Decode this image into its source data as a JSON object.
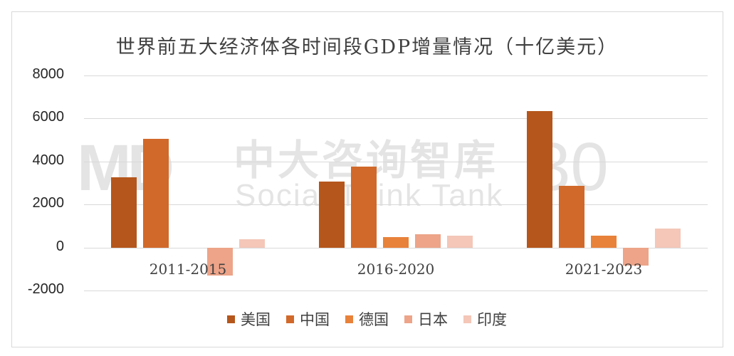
{
  "chart_data": {
    "type": "bar",
    "title": "世界前五大经济体各时间段GDP增量情况（十亿美元）",
    "xlabel": "",
    "ylabel": "",
    "ylim": [
      -2000,
      8000
    ],
    "yticks": [
      8000,
      6000,
      4000,
      2000,
      0,
      -2000
    ],
    "grid": true,
    "legend_position": "bottom",
    "categories": [
      "2011-2015",
      "2016-2020",
      "2021-2023"
    ],
    "series": [
      {
        "name": "美国",
        "color": "#b5561c",
        "values": [
          3250,
          3050,
          6350
        ]
      },
      {
        "name": "中国",
        "color": "#d1692a",
        "values": [
          5050,
          3750,
          2880
        ]
      },
      {
        "name": "德国",
        "color": "#e8823a",
        "values": [
          0,
          500,
          560
        ]
      },
      {
        "name": "日本",
        "color": "#eda489",
        "values": [
          -1300,
          600,
          -850
        ]
      },
      {
        "name": "印度",
        "color": "#f4c7b8",
        "values": [
          400,
          560,
          870
        ]
      }
    ]
  },
  "watermark": {
    "logo": "MD",
    "name_cn": "中大咨询智库",
    "name_en": "Social Think Tank",
    "badge": "30"
  }
}
